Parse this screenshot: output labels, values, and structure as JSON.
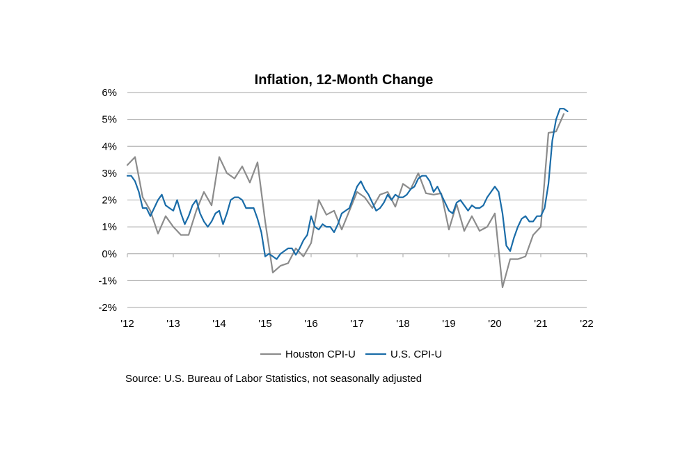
{
  "chart_data": {
    "type": "line",
    "title": "Inflation, 12-Month Change",
    "xlabel": "",
    "ylabel": "",
    "x_start_year": 2012,
    "x_tick_labels": [
      "'12",
      "'13",
      "'14",
      "'15",
      "'16",
      "'17",
      "'18",
      "'19",
      "'20",
      "'21",
      "'22"
    ],
    "xlim": [
      2012,
      2022
    ],
    "ylim": [
      -2,
      6
    ],
    "y_ticks": [
      6,
      5,
      4,
      3,
      2,
      1,
      0,
      -1,
      -2
    ],
    "y_tick_labels": [
      "6%",
      "5%",
      "4%",
      "3%",
      "2%",
      "1%",
      "0%",
      "-1%",
      "-2%"
    ],
    "grid": true,
    "legend_position": "bottom",
    "series": [
      {
        "name": "Houston CPI-U",
        "color": "#8c8c8c",
        "x_step": "bi-monthly",
        "values": [
          3.3,
          3.6,
          2.1,
          1.6,
          0.75,
          1.4,
          1.0,
          0.7,
          0.7,
          1.6,
          2.3,
          1.8,
          3.6,
          3.0,
          2.8,
          3.25,
          2.65,
          3.4,
          1.2,
          -0.7,
          -0.45,
          -0.35,
          0.2,
          -0.1,
          0.4,
          2.0,
          1.45,
          1.6,
          0.9,
          1.6,
          2.3,
          2.1,
          1.7,
          2.2,
          2.3,
          1.75,
          2.6,
          2.4,
          3.0,
          2.25,
          2.2,
          2.25,
          0.9,
          1.85,
          0.85,
          1.4,
          0.85,
          1.0,
          1.5,
          -1.25,
          -0.2,
          -0.2,
          -0.1,
          0.7,
          1.0,
          4.5,
          4.55,
          5.2
        ]
      },
      {
        "name": "U.S. CPI-U",
        "color": "#1a6ca8",
        "x_step": "monthly",
        "values": [
          2.9,
          2.9,
          2.7,
          2.3,
          1.7,
          1.7,
          1.4,
          1.7,
          2.0,
          2.2,
          1.8,
          1.7,
          1.6,
          2.0,
          1.5,
          1.1,
          1.4,
          1.8,
          2.0,
          1.5,
          1.2,
          1.0,
          1.2,
          1.5,
          1.6,
          1.1,
          1.5,
          2.0,
          2.1,
          2.1,
          2.0,
          1.7,
          1.7,
          1.7,
          1.3,
          0.8,
          -0.1,
          0.0,
          -0.1,
          -0.2,
          0.0,
          0.1,
          0.2,
          0.2,
          -0.04,
          0.2,
          0.5,
          0.7,
          1.4,
          1.0,
          0.9,
          1.1,
          1.0,
          1.0,
          0.8,
          1.1,
          1.5,
          1.6,
          1.7,
          2.1,
          2.5,
          2.7,
          2.4,
          2.2,
          1.9,
          1.6,
          1.7,
          1.9,
          2.2,
          2.0,
          2.2,
          2.1,
          2.1,
          2.2,
          2.4,
          2.5,
          2.8,
          2.9,
          2.9,
          2.7,
          2.3,
          2.5,
          2.2,
          1.9,
          1.6,
          1.5,
          1.9,
          2.0,
          1.8,
          1.6,
          1.8,
          1.7,
          1.7,
          1.8,
          2.1,
          2.3,
          2.5,
          2.3,
          1.5,
          0.3,
          0.1,
          0.6,
          1.0,
          1.3,
          1.4,
          1.2,
          1.2,
          1.4,
          1.4,
          1.7,
          2.6,
          4.2,
          5.0,
          5.4,
          5.4,
          5.3
        ]
      }
    ]
  },
  "source_note": "Source: U.S. Bureau of Labor Statistics, not seasonally adjusted"
}
